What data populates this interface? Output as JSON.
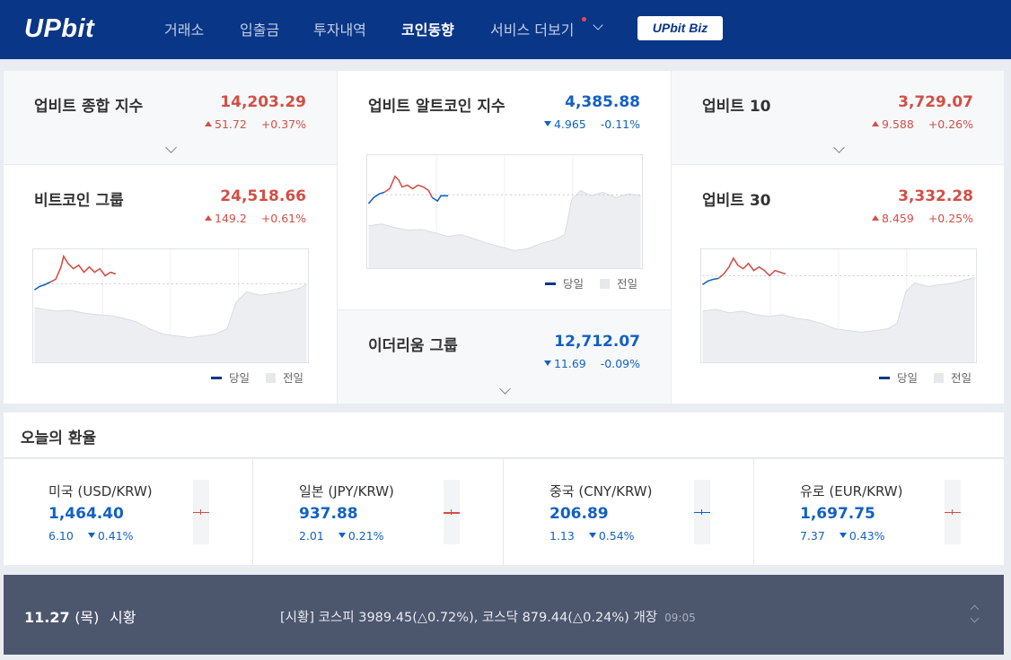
{
  "header": {
    "logo": "UPbit",
    "nav": [
      "거래소",
      "입출금",
      "투자내역",
      "코인동향",
      "서비스 더보기"
    ],
    "active_nav": "코인동향",
    "biz_label": "UPbit Biz",
    "bg_color": "#093687"
  },
  "indices": {
    "composite": {
      "name": "업비트 종합 지수",
      "value": "14,203.29",
      "change": "51.72",
      "rate": "+0.37%",
      "direction": "up"
    },
    "btc_group": {
      "name": "비트코인 그룹",
      "value": "24,518.66",
      "change": "149.2",
      "rate": "+0.61%",
      "direction": "up"
    },
    "altcoin": {
      "name": "업비트 알트코인 지수",
      "value": "4,385.88",
      "change": "4.965",
      "rate": "-0.11%",
      "direction": "down"
    },
    "eth_group": {
      "name": "이더리움 그룹",
      "value": "12,712.07",
      "change": "11.69",
      "rate": "-0.09%",
      "direction": "down"
    },
    "ubmi10": {
      "name": "업비트 10",
      "value": "3,729.07",
      "change": "9.588",
      "rate": "+0.26%",
      "direction": "up"
    },
    "ubmi30": {
      "name": "업비트 30",
      "value": "3,332.28",
      "change": "8.459",
      "rate": "+0.25%",
      "direction": "up"
    }
  },
  "legend": {
    "today": "당일",
    "yesterday": "전일"
  },
  "colors": {
    "up": "#d24f45",
    "down": "#1261c4",
    "today_line": "#093687",
    "yesterday_area": "#e6e8ec"
  },
  "exchange": {
    "title": "오늘의 환율",
    "items": [
      {
        "name": "미국 (USD/KRW)",
        "value": "1,464.40",
        "change": "6.10",
        "rate": "0.41%"
      },
      {
        "name": "일본 (JPY/KRW)",
        "value": "937.88",
        "change": "2.01",
        "rate": "0.21%"
      },
      {
        "name": "중국 (CNY/KRW)",
        "value": "206.89",
        "change": "1.13",
        "rate": "0.54%"
      },
      {
        "name": "유로 (EUR/KRW)",
        "value": "1,697.75",
        "change": "7.37",
        "rate": "0.43%"
      }
    ]
  },
  "ticker": {
    "date": "11.27",
    "day": "(목)",
    "label": "시황",
    "headline": "[시황] 코스피 3989.45(△0.72%), 코스닥 879.44(△0.24%) 개장",
    "time": "09:05"
  }
}
